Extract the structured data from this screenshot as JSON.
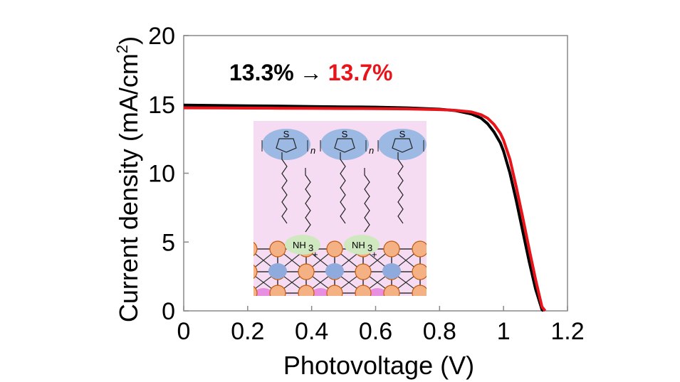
{
  "chart_data": {
    "type": "line",
    "xlabel": "Photovoltage (V)",
    "ylabel_main": "Current density (mA/cm",
    "ylabel_sup": "2",
    "ylabel_close": ")",
    "xlim": [
      0,
      1.2
    ],
    "ylim": [
      0,
      20
    ],
    "x_ticks": [
      "0",
      "0.2",
      "0.4",
      "0.6",
      "0.8",
      "1",
      "1.2"
    ],
    "y_ticks": [
      "0",
      "5",
      "10",
      "15",
      "20"
    ],
    "grid": false,
    "annotation": {
      "before": "13.3%",
      "arrow": "→",
      "after": "13.7%",
      "before_color": "#000000",
      "after_color": "#e8141a"
    },
    "series": [
      {
        "color": "#000000",
        "x": [
          0,
          0.1,
          0.2,
          0.3,
          0.4,
          0.5,
          0.6,
          0.7,
          0.8,
          0.85,
          0.9,
          0.93,
          0.95,
          0.97,
          0.99,
          1.0,
          1.02,
          1.04,
          1.06,
          1.08,
          1.1,
          1.12,
          1.125
        ],
        "y": [
          14.95,
          14.92,
          14.9,
          14.88,
          14.85,
          14.82,
          14.8,
          14.75,
          14.65,
          14.55,
          14.3,
          14.0,
          13.6,
          13.0,
          12.2,
          11.6,
          10.0,
          8.0,
          5.8,
          3.6,
          1.6,
          0.1,
          0
        ]
      },
      {
        "color": "#e8141a",
        "x": [
          0,
          0.1,
          0.2,
          0.3,
          0.4,
          0.5,
          0.6,
          0.7,
          0.8,
          0.85,
          0.9,
          0.93,
          0.95,
          0.97,
          0.99,
          1.0,
          1.02,
          1.04,
          1.06,
          1.08,
          1.1,
          1.12,
          1.13
        ],
        "y": [
          14.75,
          14.74,
          14.73,
          14.72,
          14.71,
          14.7,
          14.69,
          14.67,
          14.62,
          14.57,
          14.45,
          14.25,
          14.0,
          13.55,
          12.9,
          12.4,
          11.0,
          9.0,
          6.8,
          4.5,
          2.3,
          0.3,
          0
        ]
      }
    ]
  },
  "inset": {
    "background": "#f6dcf3",
    "molecule_color": "#9bb9e3",
    "ammonium_color": "#cfe8c0",
    "lattice_orange": "#f4b183",
    "lattice_blue": "#8faadc",
    "lattice_pink": "#e98fe0",
    "sulfur_label": "S",
    "repeat_label": "n",
    "ammonium_label": "NH",
    "ammonium_sub": "3",
    "charge_label": "+"
  }
}
